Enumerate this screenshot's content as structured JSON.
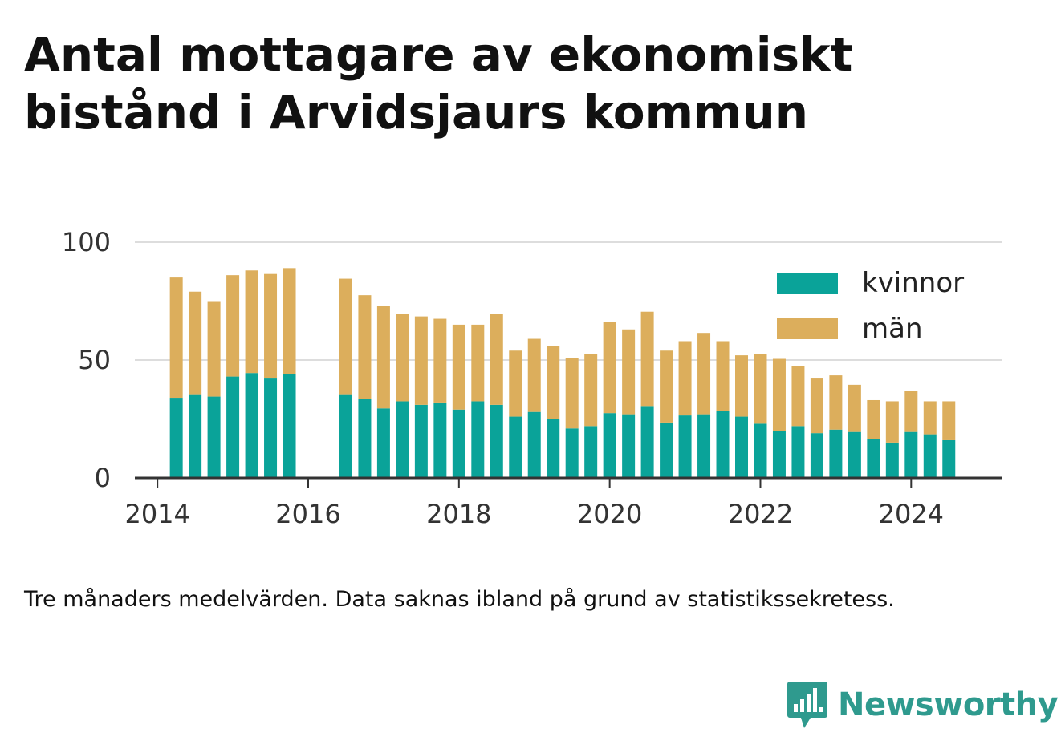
{
  "title": "Antal mottagare av ekonomiskt bistånd i Arvidsjaurs kommun",
  "note": "Tre månaders medelvärden. Data saknas ibland på grund av statistikssekretess.",
  "brand": {
    "name": "Newsworthy",
    "icon": "bar-chart-speech-bubble-icon",
    "color": "#2f9a8e"
  },
  "colors": {
    "kvinnor": "#0aa399",
    "man": "#dcae5c",
    "grid": "#dddddd",
    "axis": "#333333"
  },
  "chart_data": {
    "type": "bar",
    "stacked": true,
    "title": "Antal mottagare av ekonomiskt bistånd i Arvidsjaurs kommun",
    "xlabel": "",
    "ylabel": "",
    "ylim": [
      0,
      100
    ],
    "y_ticks": [
      0,
      50,
      100
    ],
    "x_ticks": [
      2014,
      2016,
      2018,
      2020,
      2022,
      2024
    ],
    "xlim": [
      2013.7,
      2025.2
    ],
    "grid": "horizontal",
    "legend_position": "top-right",
    "x": [
      2014.25,
      2014.5,
      2014.75,
      2015.0,
      2015.25,
      2015.5,
      2015.75,
      2016.5,
      2016.75,
      2017.0,
      2017.25,
      2017.5,
      2017.75,
      2018.0,
      2018.25,
      2018.5,
      2018.75,
      2019.0,
      2019.25,
      2019.5,
      2019.75,
      2020.0,
      2020.25,
      2020.5,
      2020.75,
      2021.0,
      2021.25,
      2021.5,
      2021.75,
      2022.0,
      2022.25,
      2022.5,
      2022.75,
      2023.0,
      2023.25,
      2023.5,
      2023.75,
      2024.0,
      2024.25,
      2024.5
    ],
    "series": [
      {
        "name": "kvinnor",
        "color": "#0aa399",
        "values": [
          34,
          35.5,
          34.5,
          43,
          44.5,
          42.5,
          44,
          35.5,
          33.5,
          29.5,
          32.5,
          31,
          32,
          29,
          32.5,
          31,
          26,
          28,
          25,
          21,
          22,
          27.5,
          27,
          30.5,
          23.5,
          26.5,
          27,
          28.5,
          26,
          23,
          20,
          22,
          19,
          20.5,
          19.5,
          16.5,
          15,
          19.5,
          18.5,
          16
        ]
      },
      {
        "name": "män",
        "color": "#dcae5c",
        "values": [
          51,
          43.5,
          40.5,
          43,
          43.5,
          44,
          45,
          49,
          44,
          43.5,
          37,
          37.5,
          35.5,
          36,
          32.5,
          38.5,
          28,
          31,
          31,
          30,
          30.5,
          38.5,
          36,
          40,
          30.5,
          31.5,
          34.5,
          29.5,
          26,
          29.5,
          30.5,
          25.5,
          23.5,
          23,
          20,
          16.5,
          17.5,
          17.5,
          14,
          16.5
        ]
      }
    ]
  }
}
